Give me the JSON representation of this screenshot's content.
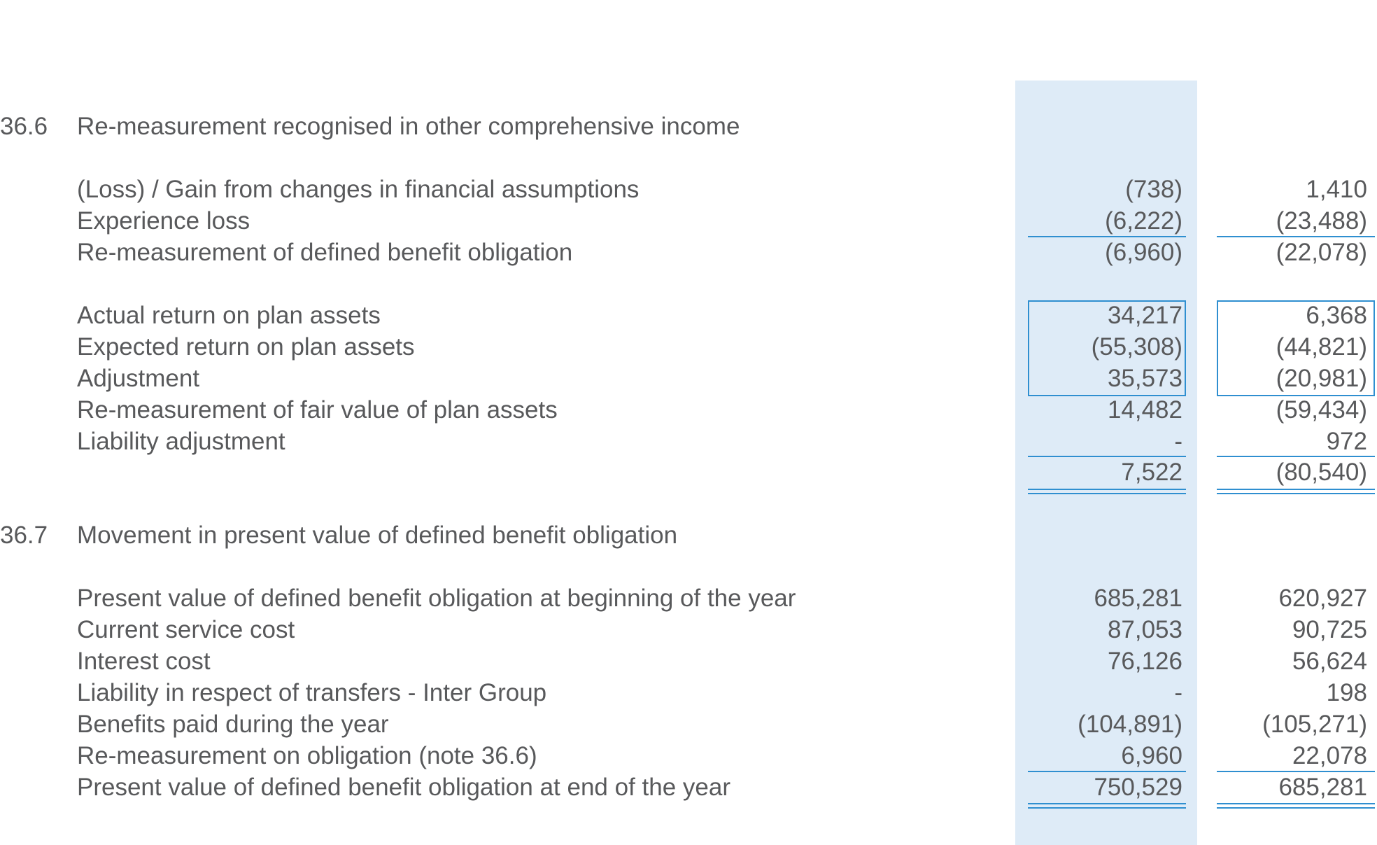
{
  "sections": [
    {
      "number": "36.6",
      "title": "Re-measurement recognised in other comprehensive income",
      "rows": [
        {
          "label": "(Loss) / Gain from changes in financial assumptions",
          "current": "(738)",
          "prior": "1,410"
        },
        {
          "label": "Experience loss",
          "current": "(6,222)",
          "prior": "(23,488)"
        },
        {
          "label": "Re-measurement of defined benefit obligation",
          "current": "(6,960)",
          "prior": "(22,078)"
        },
        {
          "label": "Actual return on plan assets",
          "current": "34,217",
          "prior": "6,368"
        },
        {
          "label": "Expected return on plan assets",
          "current": "(55,308)",
          "prior": "(44,821)"
        },
        {
          "label": "Adjustment",
          "current": "35,573",
          "prior": "(20,981)"
        },
        {
          "label": "Re-measurement of fair value of plan assets",
          "current": "14,482",
          "prior": "(59,434)"
        },
        {
          "label": "Liability adjustment",
          "current": "-",
          "prior": "972"
        }
      ],
      "total": {
        "current": "7,522",
        "prior": "(80,540)"
      }
    },
    {
      "number": "36.7",
      "title": "Movement in present value of defined benefit obligation",
      "rows": [
        {
          "label": "Present value of defined benefit obligation at beginning of the year",
          "current": "685,281",
          "prior": "620,927"
        },
        {
          "label": "Current service cost",
          "current": "87,053",
          "prior": "90,725"
        },
        {
          "label": "Interest cost",
          "current": "76,126",
          "prior": "56,624"
        },
        {
          "label": "Liability in respect of transfers - Inter Group",
          "current": "-",
          "prior": "198"
        },
        {
          "label": "Benefits paid during the year",
          "current": "(104,891)",
          "prior": "(105,271)"
        },
        {
          "label": "Re-measurement on obligation (note 36.6)",
          "current": "6,960",
          "prior": "22,078"
        },
        {
          "label": "Present value of defined benefit obligation at end of the year",
          "current": "750,529",
          "prior": "685,281"
        }
      ]
    }
  ],
  "colors": {
    "text": "#58595b",
    "rule": "#2f8fd0",
    "highlight": "#deebf7"
  }
}
